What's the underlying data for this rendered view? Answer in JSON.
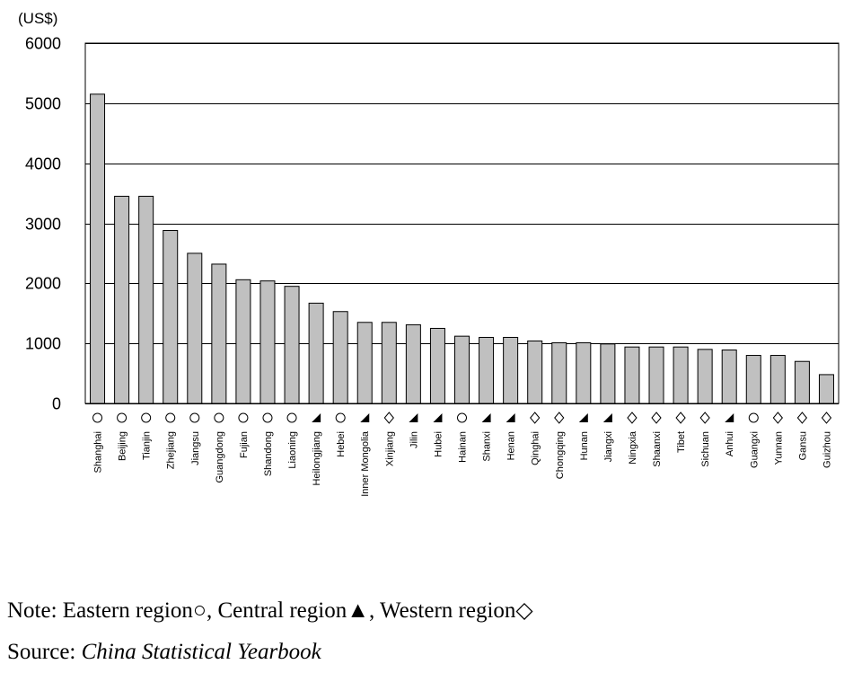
{
  "chart_data": {
    "type": "bar",
    "unit_label": "(US$)",
    "ylim": [
      0,
      6000
    ],
    "yticks": [
      0,
      1000,
      2000,
      3000,
      4000,
      5000,
      6000
    ],
    "grid": true,
    "bar_color": "#c0c0c0",
    "categories": [
      "Shanghai",
      "Beijing",
      "Tianjin",
      "Zhejiang",
      "Jiangsu",
      "Guangdong",
      "Fujian",
      "Shandong",
      "Liaoning",
      "Heilongjiang",
      "Hebei",
      "Inner Mongolia",
      "Xinjiang",
      "Jilin",
      "Hubei",
      "Hainan",
      "Shanxi",
      "Henan",
      "Qinghai",
      "Chongqing",
      "Hunan",
      "Jiangxi",
      "Ningxia",
      "Shaanxi",
      "Tibet",
      "Sichuan",
      "Anhui",
      "Guangxi",
      "Yunnan",
      "Gansu",
      "Guizhou"
    ],
    "values": [
      5150,
      3450,
      3450,
      2880,
      2500,
      2320,
      2060,
      2040,
      1950,
      1670,
      1530,
      1350,
      1350,
      1310,
      1250,
      1120,
      1100,
      1100,
      1040,
      1010,
      1010,
      990,
      940,
      940,
      940,
      900,
      890,
      800,
      800,
      700,
      480
    ],
    "region_markers": [
      "○",
      "○",
      "○",
      "○",
      "○",
      "○",
      "○",
      "○",
      "○",
      "▲",
      "○",
      "▲",
      "◇",
      "▲",
      "▲",
      "○",
      "▲",
      "▲",
      "◇",
      "◇",
      "▲",
      "▲",
      "◇",
      "◇",
      "◇",
      "◇",
      "▲",
      "○",
      "◇",
      "◇",
      "◇"
    ]
  },
  "note": {
    "prefix": "Note: ",
    "eastern": "Eastern region",
    "eastern_symbol": "○",
    "central": "Central region",
    "central_symbol": "▲",
    "western": "Western region",
    "western_symbol": "◇",
    "sep": ", "
  },
  "source": {
    "prefix": "Source: ",
    "title": "China Statistical Yearbook"
  }
}
